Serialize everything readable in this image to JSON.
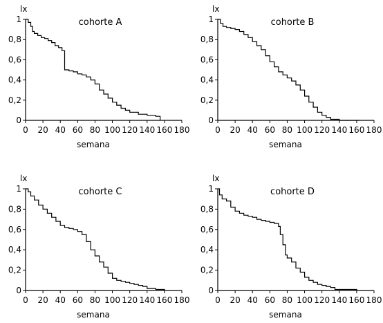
{
  "chart_data": [
    {
      "type": "line",
      "title": "cohorte A",
      "ylabel": "lx",
      "xlabel": "semana",
      "xlim": [
        0,
        180
      ],
      "ylim": [
        0,
        1
      ],
      "xticks": [
        0,
        20,
        40,
        60,
        80,
        100,
        120,
        140,
        160,
        180
      ],
      "yticks": [
        "0",
        "0,2",
        "0,4",
        "0,6",
        "0,8",
        "1"
      ],
      "ytick_values": [
        0,
        0.2,
        0.4,
        0.6,
        0.8,
        1
      ],
      "series": [
        {
          "x": [
            0,
            3,
            6,
            8,
            10,
            14,
            18,
            22,
            26,
            30,
            34,
            38,
            42,
            45,
            45,
            50,
            55,
            60,
            65,
            70,
            75,
            80,
            85,
            90,
            95,
            100,
            105,
            110,
            115,
            120,
            130,
            140,
            150,
            155
          ],
          "y": [
            1,
            0.97,
            0.93,
            0.88,
            0.86,
            0.84,
            0.82,
            0.81,
            0.79,
            0.77,
            0.74,
            0.72,
            0.69,
            0.67,
            0.5,
            0.49,
            0.48,
            0.46,
            0.45,
            0.43,
            0.4,
            0.36,
            0.3,
            0.26,
            0.22,
            0.18,
            0.15,
            0.12,
            0.1,
            0.08,
            0.06,
            0.05,
            0.04,
            0
          ]
        }
      ]
    },
    {
      "type": "line",
      "title": "cohorte B",
      "ylabel": "lx",
      "xlabel": "semana",
      "xlim": [
        0,
        180
      ],
      "ylim": [
        0,
        1
      ],
      "xticks": [
        0,
        20,
        40,
        60,
        80,
        100,
        120,
        140,
        160,
        180
      ],
      "yticks": [
        "0",
        "0,2",
        "0,4",
        "0,6",
        "0,8",
        "1"
      ],
      "ytick_values": [
        0,
        0.2,
        0.4,
        0.6,
        0.8,
        1
      ],
      "series": [
        {
          "x": [
            0,
            3,
            6,
            10,
            15,
            20,
            25,
            30,
            35,
            40,
            45,
            50,
            55,
            60,
            65,
            70,
            75,
            80,
            85,
            90,
            95,
            100,
            105,
            110,
            115,
            120,
            125,
            130,
            135,
            140,
            145,
            150,
            163
          ],
          "y": [
            1,
            0.96,
            0.93,
            0.92,
            0.91,
            0.9,
            0.88,
            0.85,
            0.82,
            0.78,
            0.74,
            0.7,
            0.64,
            0.58,
            0.53,
            0.48,
            0.45,
            0.42,
            0.39,
            0.35,
            0.3,
            0.24,
            0.18,
            0.13,
            0.08,
            0.05,
            0.03,
            0.01,
            0.01,
            0,
            0,
            0,
            0
          ]
        }
      ]
    },
    {
      "type": "line",
      "title": "cohorte C",
      "ylabel": "lx",
      "xlabel": "semana",
      "xlim": [
        0,
        180
      ],
      "ylim": [
        0,
        1
      ],
      "xticks": [
        0,
        20,
        40,
        60,
        80,
        100,
        120,
        140,
        160,
        180
      ],
      "yticks": [
        "0",
        "0,2",
        "0,4",
        "0,6",
        "0,8",
        "1"
      ],
      "ytick_values": [
        0,
        0.2,
        0.4,
        0.6,
        0.8,
        1
      ],
      "series": [
        {
          "x": [
            0,
            3,
            6,
            10,
            15,
            20,
            25,
            30,
            35,
            40,
            45,
            50,
            55,
            60,
            65,
            70,
            75,
            80,
            85,
            90,
            95,
            100,
            105,
            110,
            115,
            120,
            125,
            130,
            135,
            140,
            150,
            160
          ],
          "y": [
            1,
            0.97,
            0.93,
            0.89,
            0.84,
            0.8,
            0.76,
            0.72,
            0.68,
            0.64,
            0.62,
            0.61,
            0.6,
            0.58,
            0.55,
            0.48,
            0.4,
            0.34,
            0.28,
            0.23,
            0.17,
            0.12,
            0.1,
            0.09,
            0.08,
            0.07,
            0.06,
            0.05,
            0.04,
            0.02,
            0.01,
            0
          ]
        }
      ]
    },
    {
      "type": "line",
      "title": "cohorte D",
      "ylabel": "lx",
      "xlabel": "semana",
      "xlim": [
        0,
        180
      ],
      "ylim": [
        0,
        1
      ],
      "xticks": [
        0,
        20,
        40,
        60,
        80,
        100,
        120,
        140,
        160,
        180
      ],
      "yticks": [
        "0",
        "0,2",
        "0,4",
        "0,6",
        "0,8",
        "1"
      ],
      "ytick_values": [
        0,
        0.2,
        0.4,
        0.6,
        0.8,
        1
      ],
      "series": [
        {
          "x": [
            0,
            2,
            5,
            10,
            15,
            20,
            25,
            30,
            35,
            40,
            45,
            50,
            55,
            60,
            65,
            70,
            72,
            75,
            78,
            80,
            85,
            90,
            95,
            100,
            105,
            110,
            115,
            120,
            125,
            130,
            135,
            140,
            160
          ],
          "y": [
            1,
            0.94,
            0.9,
            0.88,
            0.82,
            0.78,
            0.76,
            0.74,
            0.73,
            0.72,
            0.7,
            0.69,
            0.68,
            0.67,
            0.66,
            0.63,
            0.55,
            0.45,
            0.35,
            0.32,
            0.28,
            0.22,
            0.18,
            0.13,
            0.1,
            0.08,
            0.06,
            0.05,
            0.04,
            0.03,
            0.01,
            0.01,
            0
          ]
        }
      ]
    }
  ]
}
